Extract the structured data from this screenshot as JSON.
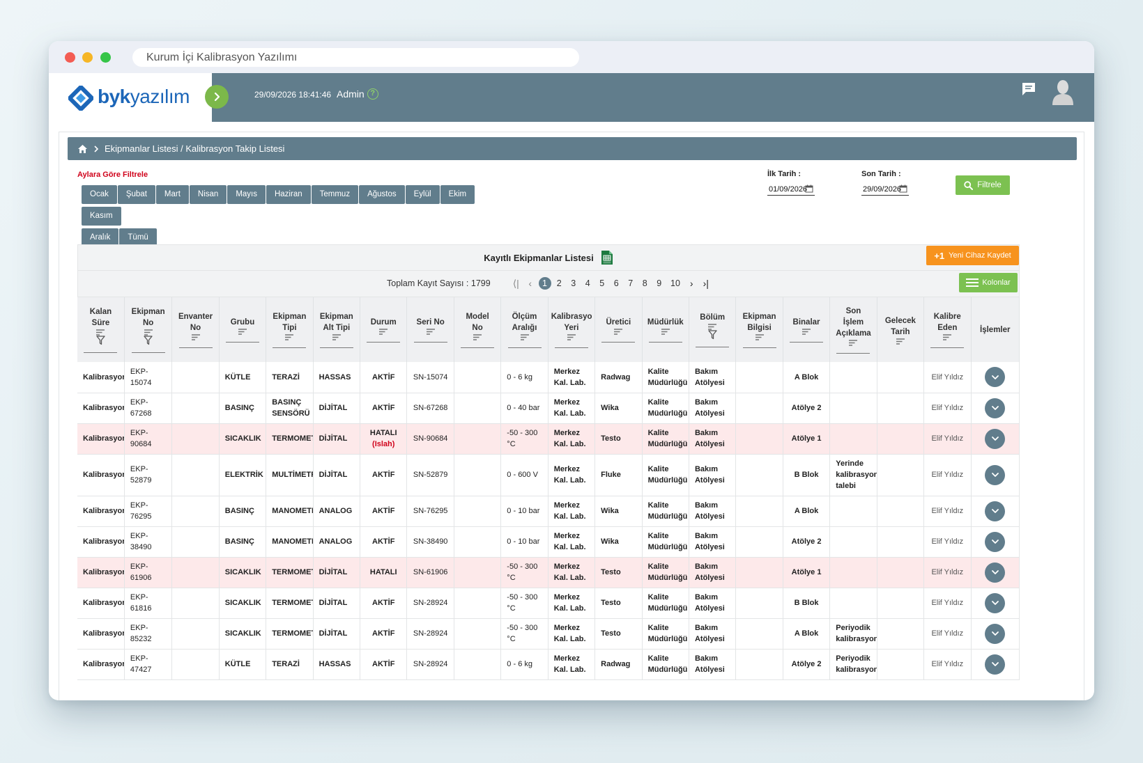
{
  "window": {
    "url_title": "Kurum İçi Kalibrasyon Yazılımı"
  },
  "header": {
    "logo_strong": "byk",
    "logo_rest": "yazılım",
    "datetime": "29/09/2026 18:41:46",
    "user": "Admin",
    "help": "?"
  },
  "breadcrumb": {
    "path": "Ekipmanlar Listesi / Kalibrasyon Takip Listesi"
  },
  "filters": {
    "title": "Aylara Göre Filtrele",
    "months": [
      "Ocak",
      "Şubat",
      "Mart",
      "Nisan",
      "Mayıs",
      "Haziran",
      "Temmuz",
      "Ağustos",
      "Eylül",
      "Ekim",
      "Kasım",
      "Aralık",
      "Tümü"
    ],
    "start_label": "İlk Tarih :",
    "start_value": "01/09/2026",
    "end_label": "Son Tarih :",
    "end_value": "29/09/2026",
    "button": "Filtrele"
  },
  "panel": {
    "title": "Kayıtlı Ekipmanlar Listesi",
    "new_button_prefix": "+1",
    "new_button": "Yeni Cihaz Kaydet",
    "total": "Toplam Kayıt Sayısı : 1799",
    "pages": [
      "1",
      "2",
      "3",
      "4",
      "5",
      "6",
      "7",
      "8",
      "9",
      "10"
    ],
    "columns_button": "Kolonlar"
  },
  "columns": [
    {
      "l1": "Kalan",
      "l2": "Süre"
    },
    {
      "l1": "Ekipman",
      "l2": "No"
    },
    {
      "l1": "Envanter",
      "l2": "No"
    },
    {
      "l1": "Grubu",
      "l2": ""
    },
    {
      "l1": "Ekipman",
      "l2": "Tipi"
    },
    {
      "l1": "Ekipman",
      "l2": "Alt Tipi"
    },
    {
      "l1": "Durum",
      "l2": ""
    },
    {
      "l1": "Seri No",
      "l2": ""
    },
    {
      "l1": "Model",
      "l2": "No"
    },
    {
      "l1": "Ölçüm",
      "l2": "Aralığı"
    },
    {
      "l1": "Kalibrasyo",
      "l2": "Yeri"
    },
    {
      "l1": "Üretici",
      "l2": ""
    },
    {
      "l1": "Müdürlük",
      "l2": ""
    },
    {
      "l1": "Bölüm",
      "l2": ""
    },
    {
      "l1": "Ekipman",
      "l2": "Bilgisi"
    },
    {
      "l1": "Binalar",
      "l2": ""
    },
    {
      "l1": "Son",
      "l2": "İşlem",
      "l3": "Açıklama"
    },
    {
      "l1": "Gelecek",
      "l2": "Tarih"
    },
    {
      "l1": "Kalibre",
      "l2": "Eden"
    },
    {
      "l1": "İşlemler",
      "l2": ""
    }
  ],
  "rows": [
    {
      "kalan": "Kalibrasyon",
      "no1": "EKP-",
      "no2": "15074",
      "grup": "KÜTLE",
      "tip1": "TERAZİ",
      "tip2": "",
      "alt": "HASSAS",
      "durum": "AKTİF",
      "durum2": "",
      "seri": "SN-15074",
      "aralik1": "0 - 6 kg",
      "aralik2": "",
      "yer1": "Merkez",
      "yer2": "Kal. Lab.",
      "uretici": "Radwag",
      "mud1": "Kalite",
      "mud2": "Müdürlüğü",
      "bol1": "Bakım",
      "bol2": "Atölyesi",
      "bina": "A Blok",
      "aciklama": "",
      "eden": "Elif Yıldız",
      "state": "normal"
    },
    {
      "kalan": "Kalibrasyon",
      "no1": "EKP-",
      "no2": "67268",
      "grup": "BASINÇ",
      "tip1": "BASINÇ",
      "tip2": "SENSÖRÜ",
      "alt": "DİJİTAL",
      "durum": "AKTİF",
      "durum2": "",
      "seri": "SN-67268",
      "aralik1": "0 - 40 bar",
      "aralik2": "",
      "yer1": "Merkez",
      "yer2": "Kal. Lab.",
      "uretici": "Wika",
      "mud1": "Kalite",
      "mud2": "Müdürlüğü",
      "bol1": "Bakım",
      "bol2": "Atölyesi",
      "bina": "Atölye 2",
      "aciklama": "",
      "eden": "Elif Yıldız",
      "state": "normal"
    },
    {
      "kalan": "Kalibrasyon",
      "no1": "EKP-",
      "no2": "90684",
      "grup": "SICAKLIK",
      "tip1": "TERMOMETRE",
      "tip2": "",
      "alt": "DİJİTAL",
      "durum": "HATALI",
      "durum2": "(Islah)",
      "seri": "SN-90684",
      "aralik1": "-50 - 300",
      "aralik2": "°C",
      "yer1": "Merkez",
      "yer2": "Kal. Lab.",
      "uretici": "Testo",
      "mud1": "Kalite",
      "mud2": "Müdürlüğü",
      "bol1": "Bakım",
      "bol2": "Atölyesi",
      "bina": "Atölye 1",
      "aciklama": "",
      "eden": "Elif Yıldız",
      "state": "error"
    },
    {
      "kalan": "Kalibrasyon",
      "no1": "EKP-",
      "no2": "52879",
      "grup": "ELEKTRİK",
      "tip1": "MULTİMETRE",
      "tip2": "",
      "alt": "DİJİTAL",
      "durum": "AKTİF",
      "durum2": "",
      "seri": "SN-52879",
      "aralik1": "0 - 600 V",
      "aralik2": "",
      "yer1": "Merkez",
      "yer2": "Kal. Lab.",
      "uretici": "Fluke",
      "mud1": "Kalite",
      "mud2": "Müdürlüğü",
      "bol1": "Bakım",
      "bol2": "Atölyesi",
      "bina": "B Blok",
      "aciklama": "Yerinde kalibrasyon talebi",
      "eden": "Elif Yıldız",
      "state": "tall"
    },
    {
      "kalan": "Kalibrasyon",
      "no1": "EKP-",
      "no2": "76295",
      "grup": "BASINÇ",
      "tip1": "MANOMETRE",
      "tip2": "",
      "alt": "ANALOG",
      "durum": "AKTİF",
      "durum2": "",
      "seri": "SN-76295",
      "aralik1": "0 - 10 bar",
      "aralik2": "",
      "yer1": "Merkez",
      "yer2": "Kal. Lab.",
      "uretici": "Wika",
      "mud1": "Kalite",
      "mud2": "Müdürlüğü",
      "bol1": "Bakım",
      "bol2": "Atölyesi",
      "bina": "A Blok",
      "aciklama": "",
      "eden": "Elif Yıldız",
      "state": "normal"
    },
    {
      "kalan": "Kalibrasyon",
      "no1": "EKP-",
      "no2": "38490",
      "grup": "BASINÇ",
      "tip1": "MANOMETRE",
      "tip2": "",
      "alt": "ANALOG",
      "durum": "AKTİF",
      "durum2": "",
      "seri": "SN-38490",
      "aralik1": "0 - 10 bar",
      "aralik2": "",
      "yer1": "Merkez",
      "yer2": "Kal. Lab.",
      "uretici": "Wika",
      "mud1": "Kalite",
      "mud2": "Müdürlüğü",
      "bol1": "Bakım",
      "bol2": "Atölyesi",
      "bina": "Atölye 2",
      "aciklama": "",
      "eden": "Elif Yıldız",
      "state": "normal"
    },
    {
      "kalan": "Kalibrasyon",
      "no1": "EKP-",
      "no2": "61906",
      "grup": "SICAKLIK",
      "tip1": "TERMOMETRE",
      "tip2": "",
      "alt": "DİJİTAL",
      "durum": "HATALI",
      "durum2": "",
      "seri": "SN-61906",
      "aralik1": "-50 - 300",
      "aralik2": "°C",
      "yer1": "Merkez",
      "yer2": "Kal. Lab.",
      "uretici": "Testo",
      "mud1": "Kalite",
      "mud2": "Müdürlüğü",
      "bol1": "Bakım",
      "bol2": "Atölyesi",
      "bina": "Atölye 1",
      "aciklama": "",
      "eden": "Elif Yıldız",
      "state": "error"
    },
    {
      "kalan": "Kalibrasyon",
      "no1": "EKP-",
      "no2": "61816",
      "grup": "SICAKLIK",
      "tip1": "TERMOMETRE",
      "tip2": "",
      "alt": "DİJİTAL",
      "durum": "AKTİF",
      "durum2": "",
      "seri": "SN-28924",
      "aralik1": "-50 - 300",
      "aralik2": "°C",
      "yer1": "Merkez",
      "yer2": "Kal. Lab.",
      "uretici": "Testo",
      "mud1": "Kalite",
      "mud2": "Müdürlüğü",
      "bol1": "Bakım",
      "bol2": "Atölyesi",
      "bina": "B Blok",
      "aciklama": "",
      "eden": "Elif Yıldız",
      "state": "normal"
    },
    {
      "kalan": "Kalibrasyon",
      "no1": "EKP-",
      "no2": "85232",
      "grup": "SICAKLIK",
      "tip1": "TERMOMETRE",
      "tip2": "",
      "alt": "DİJİTAL",
      "durum": "AKTİF",
      "durum2": "",
      "seri": "SN-28924",
      "aralik1": "-50 - 300",
      "aralik2": "°C",
      "yer1": "Merkez",
      "yer2": "Kal. Lab.",
      "uretici": "Testo",
      "mud1": "Kalite",
      "mud2": "Müdürlüğü",
      "bol1": "Bakım",
      "bol2": "Atölyesi",
      "bina": "A Blok",
      "aciklama": "Periyodik kalibrasyon",
      "eden": "Elif Yıldız",
      "state": "normal"
    },
    {
      "kalan": "Kalibrasyon",
      "no1": "EKP-",
      "no2": "47427",
      "grup": "KÜTLE",
      "tip1": "TERAZİ",
      "tip2": "",
      "alt": "HASSAS",
      "durum": "AKTİF",
      "durum2": "",
      "seri": "SN-28924",
      "aralik1": "0 - 6 kg",
      "aralik2": "",
      "yer1": "Merkez",
      "yer2": "Kal. Lab.",
      "uretici": "Radwag",
      "mud1": "Kalite",
      "mud2": "Müdürlüğü",
      "bol1": "Bakım",
      "bol2": "Atölyesi",
      "bina": "Atölye 2",
      "aciklama": "Periyodik kalibrasyon",
      "eden": "Elif Yıldız",
      "state": "normal"
    }
  ],
  "colors": {
    "header": "#617d8c",
    "green": "#7cc151",
    "orange": "#f7931e",
    "error_row": "#fde9ea",
    "danger": "#d0021b"
  }
}
